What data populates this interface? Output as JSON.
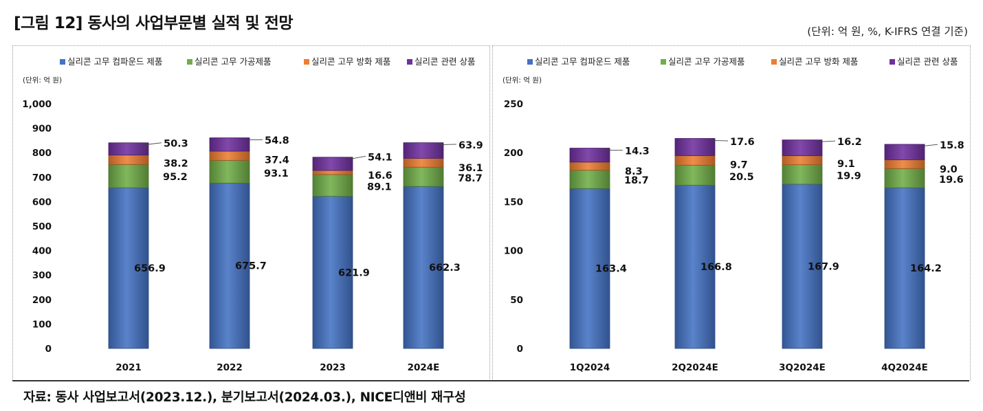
{
  "title": "[그림 12] 동사의 사업부문별 실적 및 전망",
  "unit_note": "(단위: 억 원, %, K-IFRS 연결 기준)",
  "source": "자료: 동사 사업보고서(2023.12.), 분기보고서(2024.03.), NICE디앤비 재구성",
  "colors": {
    "compound": "#4472c4",
    "processed": "#70ad47",
    "antifog": "#ed7d31",
    "related": "#7030a0"
  },
  "chart_data": [
    {
      "type": "bar",
      "stacked": true,
      "title": "",
      "unit_label": "(단위: 억 원)",
      "categories": [
        "2021",
        "2022",
        "2023",
        "2024E"
      ],
      "ylim": [
        0,
        1000
      ],
      "ytick_step": 100,
      "ytick_labels": [
        "0",
        "100",
        "200",
        "300",
        "400",
        "500",
        "600",
        "700",
        "800",
        "900",
        "1,000"
      ],
      "series": [
        {
          "name": "실리콘 고무 컴파운드 제품",
          "color_key": "compound",
          "values": [
            656.9,
            675.7,
            621.9,
            662.3
          ],
          "labels": [
            "656.9",
            "675.7",
            "621.9",
            "662.3"
          ]
        },
        {
          "name": "실리콘 고무 가공제품",
          "color_key": "processed",
          "values": [
            95.2,
            93.1,
            89.1,
            78.7
          ],
          "labels": [
            "95.2",
            "93.1",
            "89.1",
            "78.7"
          ]
        },
        {
          "name": "실리콘 고무 방화 제품",
          "color_key": "antifog",
          "values": [
            38.2,
            37.4,
            16.6,
            36.1
          ],
          "labels": [
            "38.2",
            "37.4",
            "16.6",
            "36.1"
          ]
        },
        {
          "name": "실리콘 관련 상품",
          "color_key": "related",
          "values": [
            50.3,
            54.8,
            54.1,
            63.9
          ],
          "labels": [
            "50.3",
            "54.8",
            "54.1",
            "63.9"
          ]
        }
      ],
      "legend_position": "top"
    },
    {
      "type": "bar",
      "stacked": true,
      "title": "",
      "unit_label": "(단위: 억 원)",
      "categories": [
        "1Q2024",
        "2Q2024E",
        "3Q2024E",
        "4Q2024E"
      ],
      "ylim": [
        0,
        250
      ],
      "ytick_step": 50,
      "ytick_labels": [
        "0",
        "50",
        "100",
        "150",
        "200",
        "250"
      ],
      "series": [
        {
          "name": "실리콘 고무 컴파운드 제품",
          "color_key": "compound",
          "values": [
            163.4,
            166.8,
            167.9,
            164.2
          ],
          "labels": [
            "163.4",
            "166.8",
            "167.9",
            "164.2"
          ]
        },
        {
          "name": "실리콘 고무 가공제품",
          "color_key": "processed",
          "values": [
            18.7,
            20.5,
            19.9,
            19.6
          ],
          "labels": [
            "18.7",
            "20.5",
            "19.9",
            "19.6"
          ]
        },
        {
          "name": "실리콘 고무 방화 제품",
          "color_key": "antifog",
          "values": [
            8.3,
            9.7,
            9.1,
            9.0
          ],
          "labels": [
            "8.3",
            "9.7",
            "9.1",
            "9.0"
          ]
        },
        {
          "name": "실리콘 관련 상품",
          "color_key": "related",
          "values": [
            14.3,
            17.6,
            16.2,
            15.8
          ],
          "labels": [
            "14.3",
            "17.6",
            "16.2",
            "15.8"
          ]
        }
      ],
      "legend_position": "top"
    }
  ]
}
